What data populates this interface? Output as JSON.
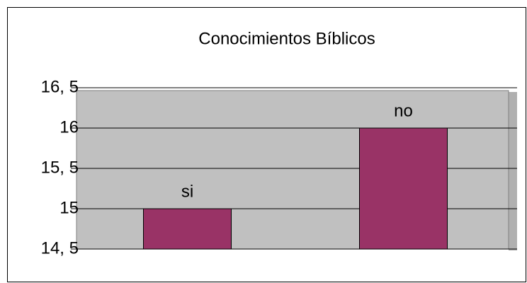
{
  "chart_data": {
    "type": "bar",
    "title": "Conocimientos Bíblicos",
    "categories": [
      "si",
      "no"
    ],
    "values": [
      15,
      16
    ],
    "color": "#993366",
    "ylim": [
      14.5,
      16.5
    ],
    "yticks": [
      {
        "value": 14.5,
        "label": "14, 5"
      },
      15,
      {
        "value": 15.5,
        "label": "15, 5"
      },
      16,
      {
        "value": 16.5,
        "label": "16, 5"
      }
    ],
    "grid": true
  }
}
